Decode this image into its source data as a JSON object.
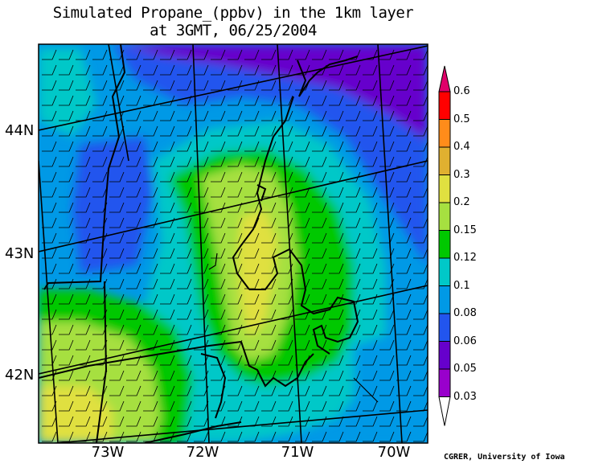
{
  "title": {
    "line1": "Simulated Propane_(ppbv) in the 1km layer",
    "line2": "at 3GMT, 06/25/2004"
  },
  "latitude_labels": [
    "44N",
    "43N",
    "42N"
  ],
  "longitude_labels": [
    "73W",
    "72W",
    "71W",
    "70W"
  ],
  "colorbar": {
    "levels": [
      "0.6",
      "0.5",
      "0.4",
      "0.3",
      "0.2",
      "0.15",
      "0.12",
      "0.1",
      "0.08",
      "0.06",
      "0.05",
      "0.03"
    ],
    "colors": [
      "#e0006a",
      "#ff0000",
      "#ff8c1a",
      "#e0b030",
      "#e0e040",
      "#a6e040",
      "#00c800",
      "#00c8c8",
      "#0099e6",
      "#2255ee",
      "#6600cc",
      "#9900cc",
      "#ffffff"
    ]
  },
  "credit": "CGRER, University of Iowa"
}
